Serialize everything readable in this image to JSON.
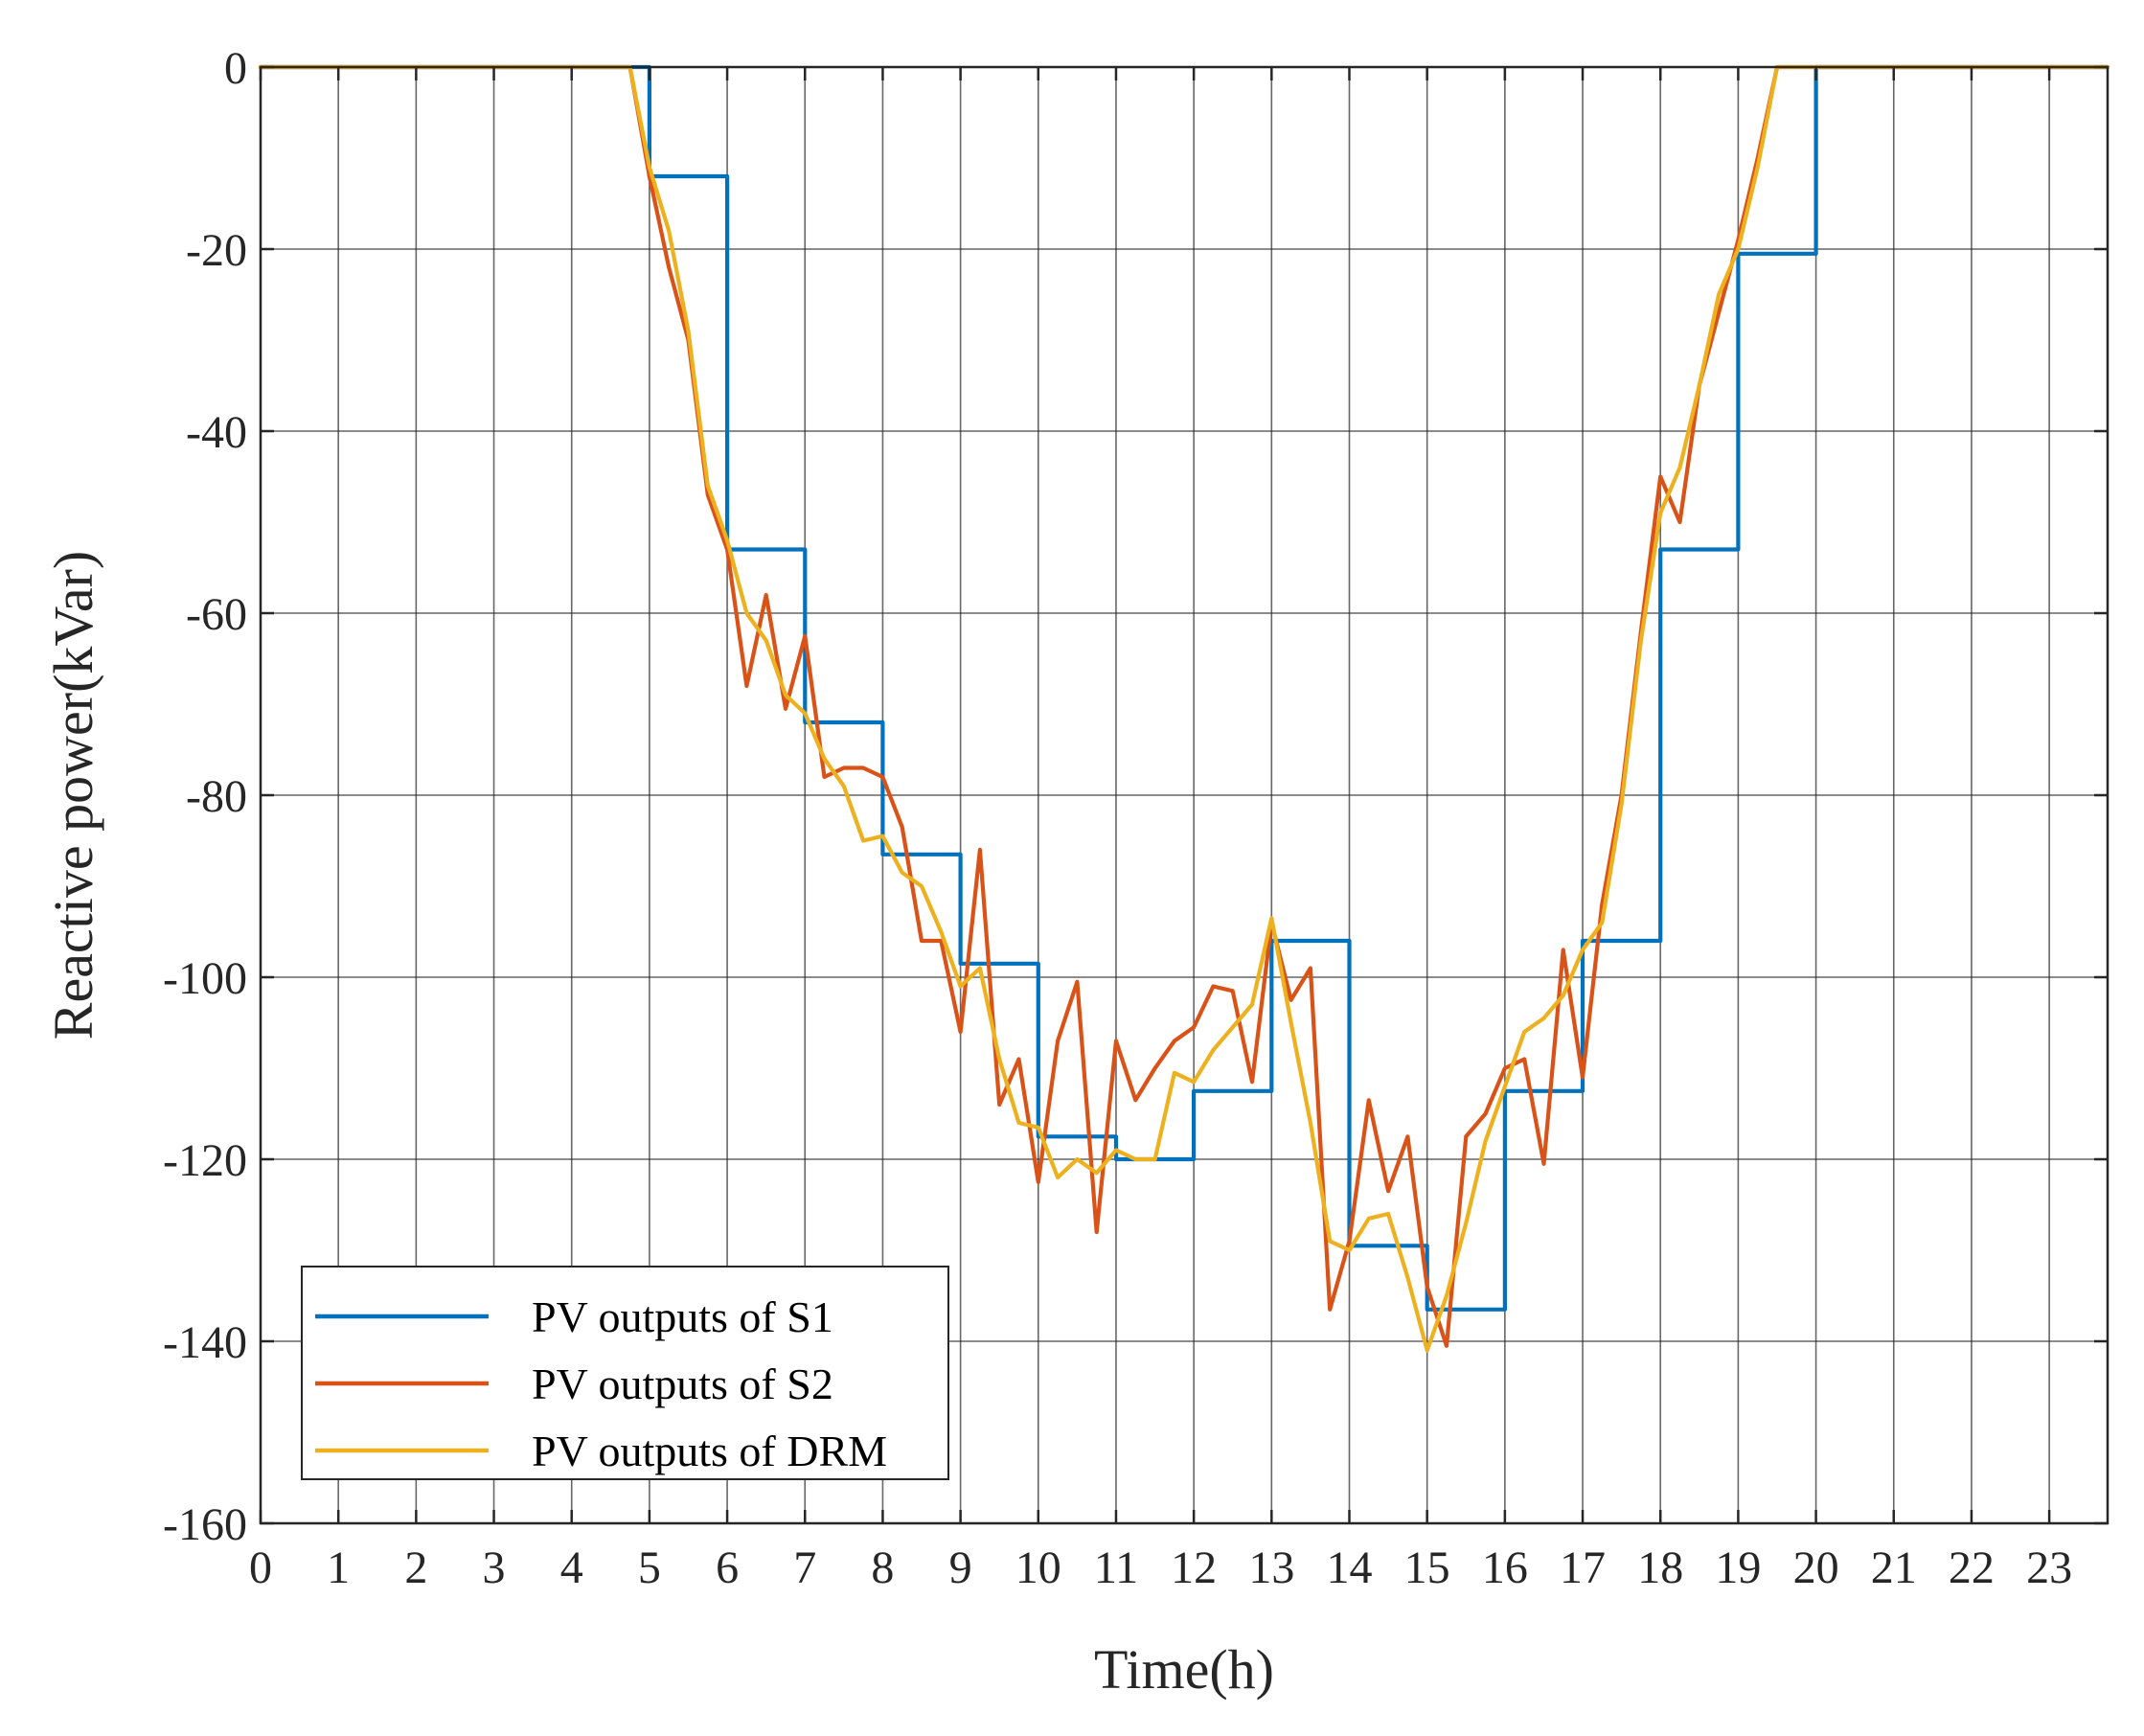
{
  "chart_data": {
    "type": "line",
    "title": "",
    "xlabel": "Time(h)",
    "ylabel": "Reactive power(kVar)",
    "xlim": [
      0,
      23.75
    ],
    "ylim": [
      -160,
      0
    ],
    "x_ticks": [
      0,
      1,
      2,
      3,
      4,
      5,
      6,
      7,
      8,
      9,
      10,
      11,
      12,
      13,
      14,
      15,
      16,
      17,
      18,
      19,
      20,
      21,
      22,
      23
    ],
    "y_ticks": [
      0,
      -20,
      -40,
      -60,
      -80,
      -100,
      -120,
      -140,
      -160
    ],
    "grid": true,
    "legend_position": "bottom-left",
    "series": [
      {
        "name": "PV outputs of S1",
        "color": "#0072BD",
        "step": true,
        "x": [
          0,
          1,
          2,
          3,
          4,
          5,
          6,
          7,
          8,
          9,
          10,
          11,
          12,
          13,
          14,
          15,
          16,
          17,
          18,
          19,
          20,
          21,
          22,
          23,
          23.75
        ],
        "y": [
          0,
          0,
          0,
          0,
          0,
          -12,
          -53,
          -72,
          -86.5,
          -98.5,
          -117.5,
          -120,
          -112.5,
          -96,
          -129.5,
          -136.5,
          -112.5,
          -96,
          -53,
          -20.5,
          0,
          0,
          0,
          0,
          0
        ]
      },
      {
        "name": "PV outputs of S2",
        "color": "#D95319",
        "step": false,
        "x": [
          0,
          4.75,
          5,
          5.25,
          5.5,
          5.75,
          6,
          6.25,
          6.5,
          6.75,
          7,
          7.25,
          7.5,
          7.75,
          8,
          8.25,
          8.5,
          8.75,
          9,
          9.25,
          9.5,
          9.75,
          10,
          10.25,
          10.5,
          10.75,
          11,
          11.25,
          11.5,
          11.75,
          12,
          12.25,
          12.5,
          12.75,
          13,
          13.25,
          13.5,
          13.75,
          14,
          14.25,
          14.5,
          14.75,
          15,
          15.25,
          15.5,
          15.75,
          16,
          16.25,
          16.5,
          16.75,
          17,
          17.25,
          17.5,
          17.75,
          18,
          18.25,
          18.5,
          18.75,
          19,
          19.25,
          19.5,
          23.75
        ],
        "y": [
          0,
          0,
          -12,
          -22,
          -30,
          -47,
          -53,
          -68,
          -58,
          -70.5,
          -62.5,
          -78,
          -77,
          -77,
          -78,
          -83.5,
          -96,
          -96,
          -106,
          -86,
          -114,
          -109,
          -122.5,
          -107,
          -100.5,
          -128,
          -107,
          -113.5,
          -110,
          -107,
          -105.5,
          -101,
          -101.5,
          -111.5,
          -94,
          -102.5,
          -99,
          -136.5,
          -129,
          -113.5,
          -123.5,
          -117.5,
          -134,
          -140.5,
          -117.5,
          -115,
          -110,
          -109,
          -120.5,
          -97,
          -111,
          -92,
          -80,
          -62,
          -45,
          -50,
          -35,
          -27,
          -19,
          -10,
          0,
          0
        ]
      },
      {
        "name": "PV outputs of DRM",
        "color": "#EDB120",
        "step": false,
        "x": [
          0,
          4.75,
          5,
          5.25,
          5.5,
          5.75,
          6,
          6.25,
          6.5,
          6.75,
          7,
          7.25,
          7.5,
          7.75,
          8,
          8.25,
          8.5,
          8.75,
          9,
          9.25,
          9.5,
          9.75,
          10,
          10.25,
          10.5,
          10.75,
          11,
          11.25,
          11.5,
          11.75,
          12,
          12.25,
          12.5,
          12.75,
          13,
          13.25,
          13.5,
          13.75,
          14,
          14.25,
          14.5,
          14.75,
          15,
          15.25,
          15.5,
          15.75,
          16,
          16.25,
          16.5,
          16.75,
          17,
          17.25,
          17.5,
          17.75,
          18,
          18.25,
          18.5,
          18.75,
          19,
          19.25,
          19.5,
          23.75
        ],
        "y": [
          0,
          0,
          -11,
          -18,
          -29,
          -46,
          -52,
          -60,
          -63,
          -69,
          -71,
          -76,
          -79,
          -85,
          -84.5,
          -88.5,
          -90,
          -95,
          -101,
          -99,
          -109,
          -116,
          -116.5,
          -122,
          -120,
          -121.5,
          -119,
          -120,
          -120,
          -110.5,
          -111.5,
          -108,
          -105.5,
          -103,
          -93.5,
          -105,
          -116,
          -129,
          -130,
          -126.5,
          -126,
          -133,
          -141,
          -135,
          -127,
          -118,
          -112,
          -106,
          -104.5,
          -102,
          -97,
          -94,
          -81,
          -63,
          -49,
          -44,
          -35,
          -25,
          -20,
          -11,
          0,
          0
        ]
      }
    ]
  }
}
